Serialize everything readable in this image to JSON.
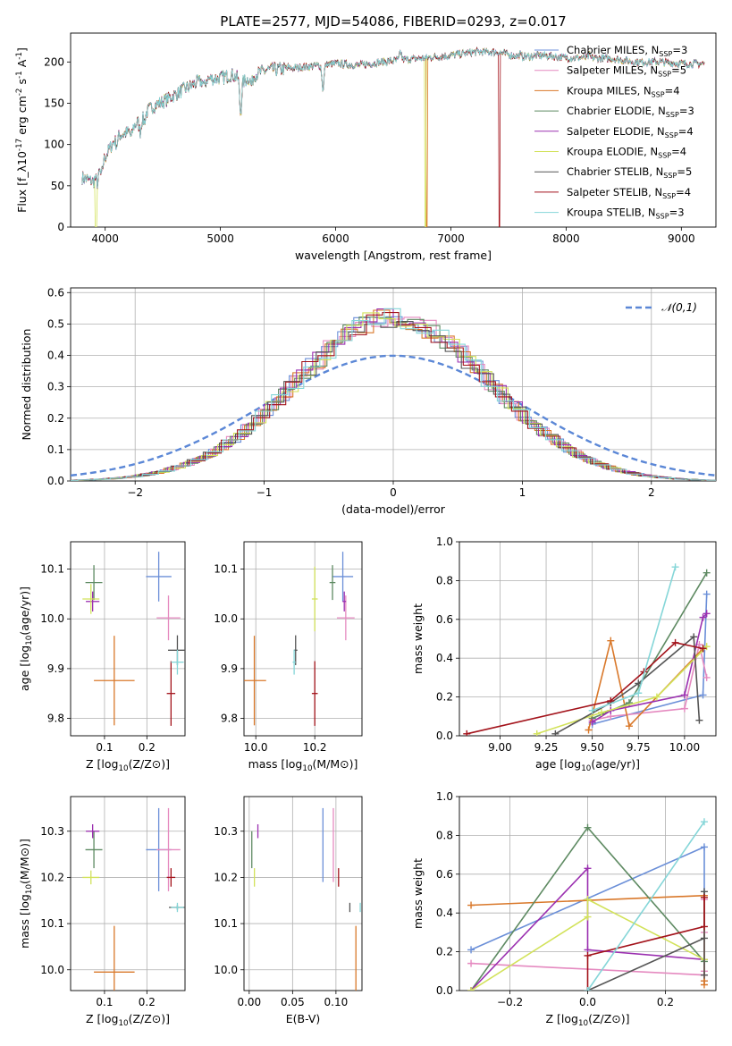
{
  "figure": {
    "title": "PLATE=2577, MJD=54086, FIBERID=0293, z=0.017"
  },
  "series_styles": [
    {
      "name": "Chabrier MILES, N_SSP=3",
      "color": "#6b8fd8"
    },
    {
      "name": "Salpeter MILES, N_SSP=5",
      "color": "#e58ac0"
    },
    {
      "name": "Kroupa MILES, N_SSP=4",
      "color": "#d9782a"
    },
    {
      "name": "Chabrier ELODIE, N_SSP=3",
      "color": "#5e8a62"
    },
    {
      "name": "Salpeter ELODIE, N_SSP=4",
      "color": "#9b30b0"
    },
    {
      "name": "Kroupa ELODIE, N_SSP=4",
      "color": "#d2e25a"
    },
    {
      "name": "Chabrier STELIB, N_SSP=5",
      "color": "#555555"
    },
    {
      "name": "Salpeter STELIB, N_SSP=4",
      "color": "#a3131b"
    },
    {
      "name": "Kroupa STELIB, N_SSP=3",
      "color": "#85d6d8"
    }
  ],
  "chart_data": [
    {
      "id": "spectrum",
      "type": "line",
      "xlabel": "wavelength [Angstrom, rest frame]",
      "ylabel": "Flux [f_λ10^-17 erg cm^-2 s^-1 A^-1]",
      "xlim": [
        3700,
        9300
      ],
      "ylim": [
        0,
        235
      ],
      "xticks": [
        4000,
        5000,
        6000,
        7000,
        8000,
        9000
      ],
      "yticks": [
        0,
        50,
        100,
        150,
        200
      ],
      "legend_position": "right",
      "legend": [
        "Chabrier MILES, N_SSP=3",
        "Salpeter MILES, N_SSP=5",
        "Kroupa MILES, N_SSP=4",
        "Chabrier ELODIE, N_SSP=3",
        "Salpeter ELODIE, N_SSP=4",
        "Kroupa ELODIE, N_SSP=4",
        "Chabrier STELIB, N_SSP=5",
        "Salpeter STELIB, N_SSP=4",
        "Kroupa STELIB, N_SSP=3"
      ],
      "continuum": [
        [
          3800,
          60
        ],
        [
          3900,
          55
        ],
        [
          4000,
          85
        ],
        [
          4100,
          110
        ],
        [
          4200,
          115
        ],
        [
          4300,
          130
        ],
        [
          4400,
          145
        ],
        [
          4500,
          152
        ],
        [
          4600,
          160
        ],
        [
          4700,
          168
        ],
        [
          4800,
          175
        ],
        [
          4900,
          180
        ],
        [
          5000,
          180
        ],
        [
          5100,
          185
        ],
        [
          5200,
          176
        ],
        [
          5300,
          185
        ],
        [
          5400,
          190
        ],
        [
          5600,
          192
        ],
        [
          5800,
          195
        ],
        [
          6000,
          198
        ],
        [
          6200,
          196
        ],
        [
          6400,
          200
        ],
        [
          6600,
          203
        ],
        [
          6800,
          205
        ],
        [
          7000,
          208
        ],
        [
          7200,
          212
        ],
        [
          7400,
          212
        ],
        [
          7600,
          206
        ],
        [
          7800,
          208
        ],
        [
          8000,
          205
        ],
        [
          8200,
          205
        ],
        [
          8400,
          204
        ],
        [
          8600,
          200
        ],
        [
          8800,
          200
        ],
        [
          9000,
          198
        ],
        [
          9200,
          198
        ]
      ],
      "absorption": [
        [
          3934,
          12
        ],
        [
          3968,
          14
        ],
        [
          4101,
          10
        ],
        [
          4227,
          10
        ],
        [
          4304,
          15
        ],
        [
          4340,
          8
        ],
        [
          4861,
          8
        ],
        [
          5175,
          40
        ],
        [
          5270,
          10
        ],
        [
          5890,
          30
        ],
        [
          6563,
          -10
        ],
        [
          7600,
          -3
        ],
        [
          8200,
          -3
        ]
      ],
      "dropouts": [
        {
          "series": "Kroupa ELODIE, N_SSP=4",
          "x": 3920
        },
        {
          "series": "Kroupa ELODIE, N_SSP=4",
          "x": 6780
        },
        {
          "series": "Kroupa MILES, N_SSP=4",
          "x": 6790
        },
        {
          "series": "Salpeter STELIB, N_SSP=4",
          "x": 7420
        }
      ]
    },
    {
      "id": "residuals",
      "type": "step",
      "xlabel": "(data-model)/error",
      "ylabel": "Normed distribution",
      "xlim": [
        -2.5,
        2.5
      ],
      "ylim": [
        0,
        0.615
      ],
      "xticks": [
        -2,
        -1,
        0,
        1,
        2
      ],
      "yticks": [
        0.0,
        0.1,
        0.2,
        0.3,
        0.4,
        0.5,
        0.6
      ],
      "grid": true,
      "reference_curve": {
        "name": "𝒩(0,1)",
        "mu": 0,
        "sigma": 1,
        "color": "#5b87d6"
      },
      "bin_width": 0.125,
      "hist_peak": 0.52,
      "hist_sigma": 0.75,
      "legend_position": "top-right"
    },
    {
      "id": "age-vs-Z",
      "type": "errorbar",
      "xlabel": "Z [log10(Z/Z⊙)]",
      "ylabel": "age  [log10(age/yr)]",
      "xlim": [
        0.02,
        0.29
      ],
      "ylim": [
        9.765,
        10.155
      ],
      "xticks": [
        0.1,
        0.2
      ],
      "yticks": [
        9.8,
        9.9,
        10.0,
        10.1
      ],
      "points": [
        {
          "x": 0.228,
          "y": 10.085,
          "xerr": 0.03,
          "yerr": 0.05
        },
        {
          "x": 0.251,
          "y": 10.002,
          "xerr": 0.028,
          "yerr": 0.045
        },
        {
          "x": 0.123,
          "y": 9.876,
          "xerr": 0.048,
          "yerr": 0.09
        },
        {
          "x": 0.075,
          "y": 10.073,
          "xerr": 0.02,
          "yerr": 0.035
        },
        {
          "x": 0.072,
          "y": 10.035,
          "xerr": 0.016,
          "yerr": 0.02
        },
        {
          "x": 0.068,
          "y": 10.04,
          "xerr": 0.02,
          "yerr": 0.03
        },
        {
          "x": 0.272,
          "y": 9.937,
          "xerr": 0.022,
          "yerr": 0.03
        },
        {
          "x": 0.257,
          "y": 9.85,
          "xerr": 0.01,
          "yerr": 0.065
        },
        {
          "x": 0.272,
          "y": 9.913,
          "xerr": 0.015,
          "yerr": 0.025
        }
      ]
    },
    {
      "id": "age-vs-mass",
      "type": "errorbar",
      "xlabel": "mass [log10(M/M⊙)]",
      "ylabel": "",
      "xlim": [
        9.96,
        10.36
      ],
      "ylim": [
        9.765,
        10.155
      ],
      "xticks": [
        10.0,
        10.2
      ],
      "yticks": [
        9.8,
        9.9,
        10.0,
        10.1
      ],
      "points": [
        {
          "x": 10.295,
          "y": 10.085,
          "xerr": 0.035,
          "yerr": 0.05
        },
        {
          "x": 10.305,
          "y": 10.002,
          "xerr": 0.03,
          "yerr": 0.045
        },
        {
          "x": 9.995,
          "y": 9.876,
          "xerr": 0.04,
          "yerr": 0.09
        },
        {
          "x": 10.26,
          "y": 10.073,
          "xerr": 0.01,
          "yerr": 0.035
        },
        {
          "x": 10.3,
          "y": 10.035,
          "xerr": 0.006,
          "yerr": 0.02
        },
        {
          "x": 10.2,
          "y": 10.04,
          "xerr": 0.01,
          "yerr": 0.065
        },
        {
          "x": 10.135,
          "y": 9.937,
          "xerr": 0.006,
          "yerr": 0.03
        },
        {
          "x": 10.2,
          "y": 9.85,
          "xerr": 0.01,
          "yerr": 0.065
        },
        {
          "x": 10.13,
          "y": 9.913,
          "xerr": 0.005,
          "yerr": 0.025
        }
      ]
    },
    {
      "id": "weight-vs-age",
      "type": "line",
      "xlabel": "age  [log10(age/yr)]",
      "ylabel": "mass weight",
      "xlim": [
        8.78,
        10.17
      ],
      "ylim": [
        0,
        1.0
      ],
      "xticks": [
        9.0,
        9.25,
        9.5,
        9.75,
        10.0
      ],
      "yticks": [
        0.0,
        0.2,
        0.4,
        0.6,
        0.8,
        1.0
      ],
      "grid": true,
      "series": [
        {
          "name": "Chabrier MILES, N_SSP=3",
          "x": [
            9.5,
            10.1,
            10.12
          ],
          "y": [
            0.06,
            0.21,
            0.73
          ]
        },
        {
          "name": "Salpeter MILES, N_SSP=5",
          "x": [
            9.5,
            9.6,
            10.0,
            10.08,
            10.12
          ],
          "y": [
            0.08,
            0.1,
            0.14,
            0.47,
            0.3
          ]
        },
        {
          "name": "Kroupa MILES, N_SSP=4",
          "x": [
            9.48,
            9.6,
            9.7,
            10.1
          ],
          "y": [
            0.03,
            0.49,
            0.05,
            0.45
          ]
        },
        {
          "name": "Chabrier ELODIE, N_SSP=3",
          "x": [
            9.5,
            9.7,
            10.12
          ],
          "y": [
            0.09,
            0.17,
            0.84
          ]
        },
        {
          "name": "Salpeter ELODIE, N_SSP=4",
          "x": [
            9.5,
            9.6,
            10.0,
            10.1,
            10.12
          ],
          "y": [
            0.07,
            0.13,
            0.21,
            0.61,
            0.63
          ]
        },
        {
          "name": "Kroupa ELODIE, N_SSP=4",
          "x": [
            9.2,
            9.55,
            9.85,
            10.12
          ],
          "y": [
            0.01,
            0.12,
            0.2,
            0.46
          ]
        },
        {
          "name": "Chabrier STELIB, N_SSP=5",
          "x": [
            9.3,
            9.6,
            9.75,
            10.05,
            10.08
          ],
          "y": [
            0.01,
            0.17,
            0.27,
            0.51,
            0.08
          ]
        },
        {
          "name": "Salpeter STELIB, N_SSP=4",
          "x": [
            8.82,
            9.6,
            9.78,
            9.95,
            10.1
          ],
          "y": [
            0.01,
            0.18,
            0.33,
            0.48,
            0.45
          ]
        },
        {
          "name": "Kroupa STELIB, N_SSP=3",
          "x": [
            9.5,
            9.75,
            9.95
          ],
          "y": [
            0.13,
            0.22,
            0.87
          ]
        }
      ]
    },
    {
      "id": "mass-vs-Z",
      "type": "errorbar",
      "xlabel": "Z [log10(Z/Z⊙)]",
      "ylabel": "mass [log10(M/M⊙)]",
      "xlim": [
        0.02,
        0.29
      ],
      "ylim": [
        9.955,
        10.375
      ],
      "xticks": [
        0.1,
        0.2
      ],
      "yticks": [
        10.0,
        10.1,
        10.2,
        10.3
      ],
      "points": [
        {
          "x": 0.228,
          "y": 10.26,
          "xerr": 0.03,
          "yerr": 0.09
        },
        {
          "x": 0.251,
          "y": 10.26,
          "xerr": 0.028,
          "yerr": 0.09
        },
        {
          "x": 0.123,
          "y": 9.995,
          "xerr": 0.048,
          "yerr": 0.1
        },
        {
          "x": 0.075,
          "y": 10.26,
          "xerr": 0.02,
          "yerr": 0.04
        },
        {
          "x": 0.072,
          "y": 10.3,
          "xerr": 0.016,
          "yerr": 0.015
        },
        {
          "x": 0.068,
          "y": 10.2,
          "xerr": 0.02,
          "yerr": 0.015
        },
        {
          "x": 0.272,
          "y": 10.135,
          "xerr": 0.02,
          "yerr": 0.005
        },
        {
          "x": 0.257,
          "y": 10.2,
          "xerr": 0.01,
          "yerr": 0.02
        },
        {
          "x": 0.272,
          "y": 10.135,
          "xerr": 0.015,
          "yerr": 0.01
        }
      ]
    },
    {
      "id": "mass-vs-ebv",
      "type": "errorbar",
      "xlabel": "E(B-V)",
      "ylabel": "",
      "xlim": [
        -0.006,
        0.13
      ],
      "ylim": [
        9.955,
        10.375
      ],
      "xticks": [
        0.0,
        0.05,
        0.1
      ],
      "yticks": [
        10.0,
        10.1,
        10.2,
        10.3
      ],
      "points": [
        {
          "x": 0.085,
          "y": 10.27,
          "xerr": 0,
          "yerr": 0.08
        },
        {
          "x": 0.097,
          "y": 10.27,
          "xerr": 0,
          "yerr": 0.08
        },
        {
          "x": 0.123,
          "y": 9.995,
          "xerr": 0,
          "yerr": 0.1
        },
        {
          "x": 0.003,
          "y": 10.26,
          "xerr": 0,
          "yerr": 0.04
        },
        {
          "x": 0.01,
          "y": 10.3,
          "xerr": 0,
          "yerr": 0.015
        },
        {
          "x": 0.006,
          "y": 10.2,
          "xerr": 0,
          "yerr": 0.02
        },
        {
          "x": 0.116,
          "y": 10.135,
          "xerr": 0,
          "yerr": 0.01
        },
        {
          "x": 0.103,
          "y": 10.2,
          "xerr": 0,
          "yerr": 0.02
        },
        {
          "x": 0.128,
          "y": 10.135,
          "xerr": 0,
          "yerr": 0.01
        }
      ]
    },
    {
      "id": "weight-vs-Z",
      "type": "line",
      "xlabel": "Z [log10(Z/Z⊙)]",
      "ylabel": "mass weight",
      "xlim": [
        -0.33,
        0.33
      ],
      "ylim": [
        0,
        1.0
      ],
      "xticks": [
        -0.2,
        0.0,
        0.2
      ],
      "yticks": [
        0.0,
        0.2,
        0.4,
        0.6,
        0.8,
        1.0
      ],
      "grid": true,
      "series": [
        {
          "name": "Chabrier MILES, N_SSP=3",
          "x": [
            -0.3,
            0.3,
            0.3
          ],
          "y": [
            0.21,
            0.74,
            0.05
          ]
        },
        {
          "name": "Salpeter MILES, N_SSP=5",
          "x": [
            -0.3,
            0.3,
            0.3,
            0.3,
            0.3
          ],
          "y": [
            0.14,
            0.08,
            0.3,
            0.47,
            0.1
          ]
        },
        {
          "name": "Kroupa MILES, N_SSP=4",
          "x": [
            -0.3,
            0.3,
            0.3,
            0.3
          ],
          "y": [
            0.44,
            0.49,
            0.05,
            0.03
          ]
        },
        {
          "name": "Chabrier ELODIE, N_SSP=3",
          "x": [
            -0.3,
            0.0,
            0.3
          ],
          "y": [
            0.0,
            0.84,
            0.15
          ]
        },
        {
          "name": "Salpeter ELODIE, N_SSP=4",
          "x": [
            -0.3,
            0.0,
            0.0,
            0.3
          ],
          "y": [
            0.0,
            0.63,
            0.21,
            0.16
          ]
        },
        {
          "name": "Kroupa ELODIE, N_SSP=4",
          "x": [
            -0.3,
            0.0,
            0.0,
            0.3
          ],
          "y": [
            0.0,
            0.38,
            0.47,
            0.16
          ]
        },
        {
          "name": "Chabrier STELIB, N_SSP=5",
          "x": [
            0.0,
            0.3,
            0.3,
            0.3
          ],
          "y": [
            0.0,
            0.27,
            0.08,
            0.51
          ]
        },
        {
          "name": "Salpeter STELIB, N_SSP=4",
          "x": [
            0.0,
            0.0,
            0.3,
            0.3
          ],
          "y": [
            0.0,
            0.18,
            0.33,
            0.48
          ]
        },
        {
          "name": "Kroupa STELIB, N_SSP=3",
          "x": [
            0.0,
            0.3
          ],
          "y": [
            0.0,
            0.87
          ]
        }
      ]
    }
  ]
}
